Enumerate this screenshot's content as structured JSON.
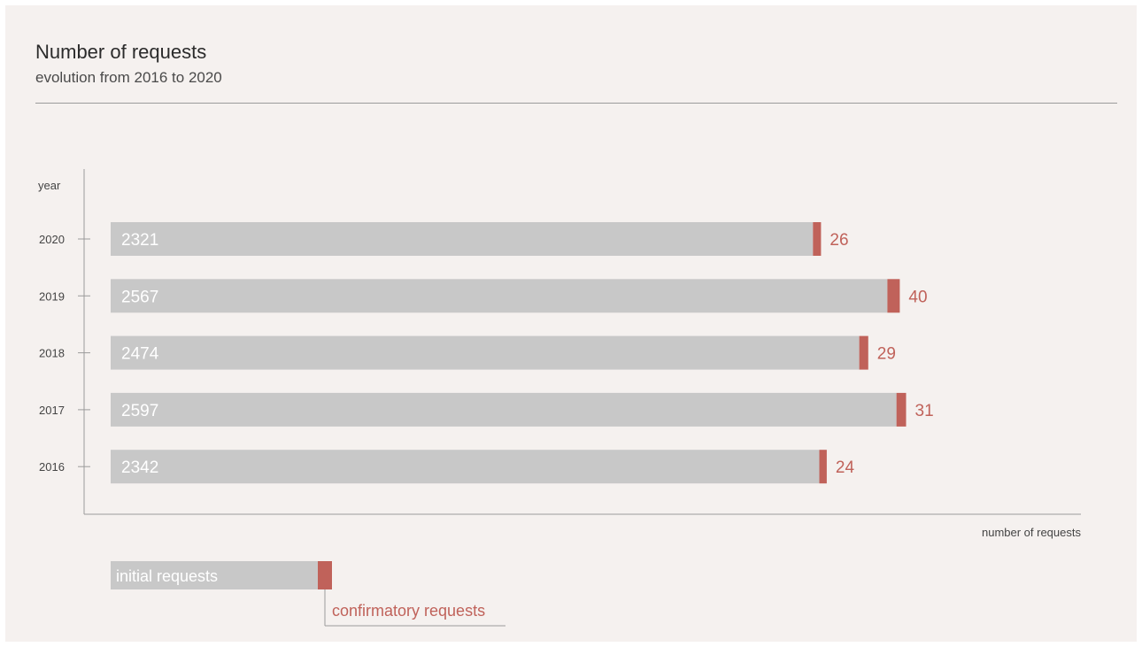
{
  "header": {
    "title": "Number of requests",
    "subtitle": "evolution from 2016 to 2020"
  },
  "colors": {
    "initial": "#c8c8c8",
    "confirmatory": "#c0625a",
    "axis": "#9b9b9b",
    "background": "#f5f1ef"
  },
  "chart_data": {
    "type": "bar",
    "orientation": "horizontal",
    "stacked": true,
    "ylabel": "year",
    "xlabel": "number of requests",
    "categories": [
      "2020",
      "2019",
      "2018",
      "2017",
      "2016"
    ],
    "series": [
      {
        "name": "initial requests",
        "values": [
          2321,
          2567,
          2474,
          2597,
          2342
        ]
      },
      {
        "name": "confirmatory requests",
        "values": [
          26,
          40,
          29,
          31,
          24
        ]
      }
    ],
    "legend_position": "bottom-left",
    "grid": false
  }
}
